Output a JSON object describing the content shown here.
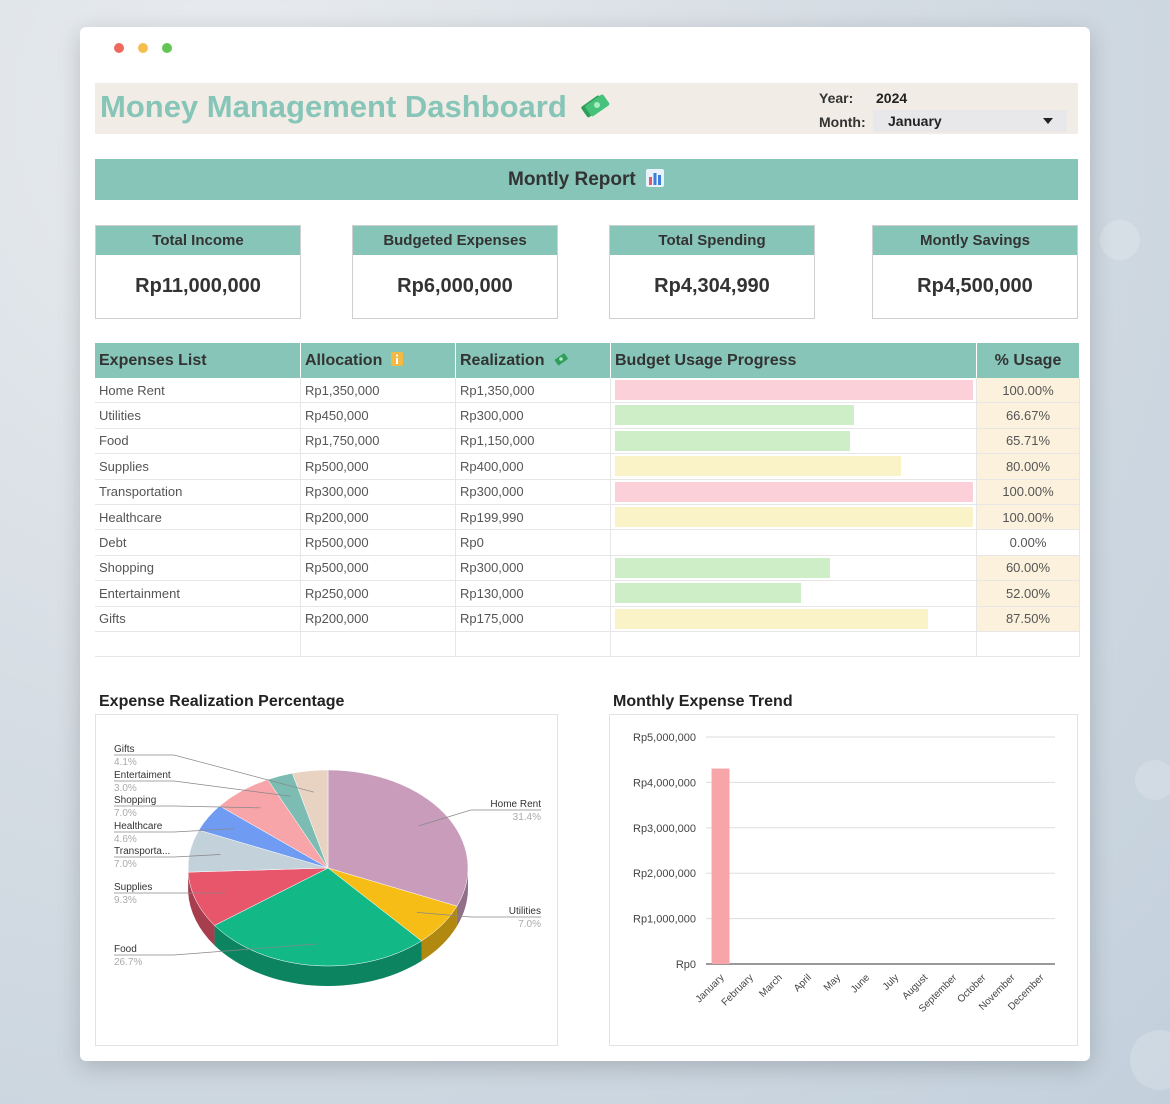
{
  "header": {
    "title": "Money Management Dashboard",
    "title_icon": "money-bills-icon",
    "year_label": "Year:",
    "year_value": "2024",
    "month_label": "Month:",
    "month_value": "January"
  },
  "banner": {
    "label": "Montly Report",
    "icon": "bar-chart-icon"
  },
  "kpis": [
    {
      "label": "Total Income",
      "value": "Rp11,000,000"
    },
    {
      "label": "Budgeted Expenses",
      "value": "Rp6,000,000"
    },
    {
      "label": "Total Spending",
      "value": "Rp4,304,990"
    },
    {
      "label": "Montly Savings",
      "value": "Rp4,500,000"
    }
  ],
  "table": {
    "headers": {
      "name": "Expenses List",
      "allocation": "Allocation",
      "realization": "Realization",
      "progress": "Budget Usage Progress",
      "usage": "% Usage"
    },
    "rows": [
      {
        "name": "Home Rent",
        "allocation": "Rp1,350,000",
        "realization": "Rp1,350,000",
        "usage": "100.00%",
        "progress": 1.0,
        "color": "#fbd0d8"
      },
      {
        "name": "Utilities",
        "allocation": "Rp450,000",
        "realization": "Rp300,000",
        "usage": "66.67%",
        "progress": 0.6667,
        "color": "#cdeec6"
      },
      {
        "name": "Food",
        "allocation": "Rp1,750,000",
        "realization": "Rp1,150,000",
        "usage": "65.71%",
        "progress": 0.6571,
        "color": "#cdeec6"
      },
      {
        "name": "Supplies",
        "allocation": "Rp500,000",
        "realization": "Rp400,000",
        "usage": "80.00%",
        "progress": 0.8,
        "color": "#faf3c8"
      },
      {
        "name": "Transportation",
        "allocation": "Rp300,000",
        "realization": "Rp300,000",
        "usage": "100.00%",
        "progress": 1.0,
        "color": "#fbd0d8"
      },
      {
        "name": "Healthcare",
        "allocation": "Rp200,000",
        "realization": "Rp199,990",
        "usage": "100.00%",
        "progress": 1.0,
        "color": "#faf3c8"
      },
      {
        "name": "Debt",
        "allocation": "Rp500,000",
        "realization": "Rp0",
        "usage": "0.00%",
        "progress": 0.0,
        "color": "#ffffff"
      },
      {
        "name": "Shopping",
        "allocation": "Rp500,000",
        "realization": "Rp300,000",
        "usage": "60.00%",
        "progress": 0.6,
        "color": "#cdeec6"
      },
      {
        "name": "Entertainment",
        "allocation": "Rp250,000",
        "realization": "Rp130,000",
        "usage": "52.00%",
        "progress": 0.52,
        "color": "#cdeec6"
      },
      {
        "name": "Gifts",
        "allocation": "Rp200,000",
        "realization": "Rp175,000",
        "usage": "87.50%",
        "progress": 0.875,
        "color": "#faf3c8"
      }
    ]
  },
  "pie_title": "Expense Realization Percentage",
  "bar_title": "Monthly Expense Trend",
  "chart_data": [
    {
      "type": "pie",
      "title": "Expense Realization Percentage",
      "slices": [
        {
          "label": "Home Rent",
          "pct": "31.4%",
          "value": 31.4,
          "color": "#c89cba"
        },
        {
          "label": "Utilities",
          "pct": "7.0%",
          "value": 7.0,
          "color": "#f6bd16"
        },
        {
          "label": "Food",
          "pct": "26.7%",
          "value": 26.7,
          "color": "#12b886"
        },
        {
          "label": "Supplies",
          "pct": "9.3%",
          "value": 9.3,
          "color": "#e8566c"
        },
        {
          "label": "Transporta...",
          "pct": "7.0%",
          "value": 7.0,
          "color": "#c3d1db"
        },
        {
          "label": "Healthcare",
          "pct": "4.6%",
          "value": 4.6,
          "color": "#6f9cf2"
        },
        {
          "label": "Shopping",
          "pct": "7.0%",
          "value": 7.0,
          "color": "#f8a5aa"
        },
        {
          "label": "Entertaiment",
          "pct": "3.0%",
          "value": 3.0,
          "color": "#7cbcb2"
        },
        {
          "label": "Gifts",
          "pct": "4.1%",
          "value": 4.1,
          "color": "#e8d3c3"
        }
      ]
    },
    {
      "type": "bar",
      "title": "Monthly Expense Trend",
      "categories": [
        "January",
        "February",
        "March",
        "April",
        "May",
        "June",
        "July",
        "August",
        "September",
        "October",
        "November",
        "December"
      ],
      "values": [
        4304990,
        0,
        0,
        0,
        0,
        0,
        0,
        0,
        0,
        0,
        0,
        0
      ],
      "ylim": [
        0,
        5000000
      ],
      "yticks": [
        "Rp0",
        "Rp1,000,000",
        "Rp2,000,000",
        "Rp3,000,000",
        "Rp4,000,000",
        "Rp5,000,000"
      ],
      "color": "#f8a5aa",
      "grid": true
    }
  ]
}
